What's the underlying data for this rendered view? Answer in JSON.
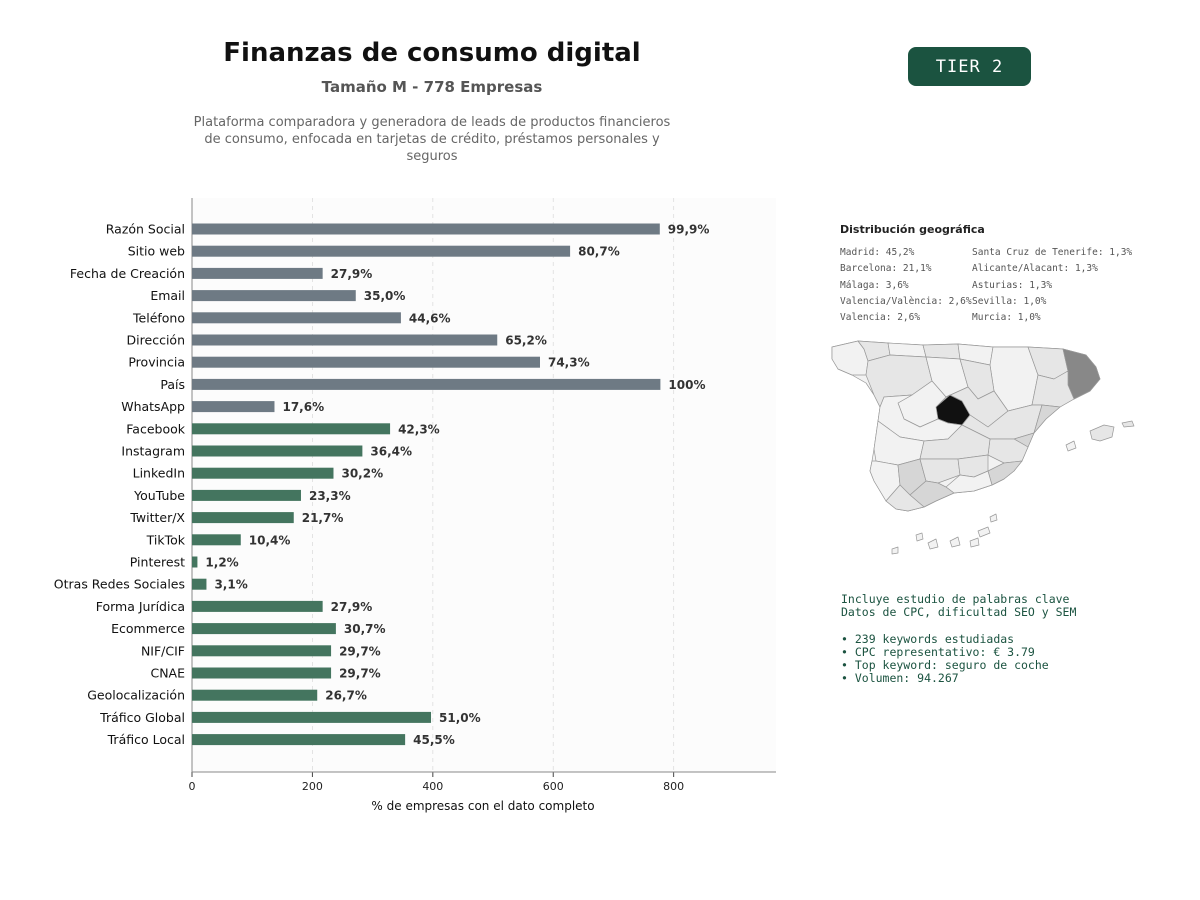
{
  "header": {
    "title": "Finanzas de consumo digital",
    "subtitle": "Tamaño M - 778 Empresas",
    "description": "Plataforma comparadora y generadora de leads de productos financieros de consumo, enfocada en tarjetas de crédito, préstamos personales y seguros",
    "tier": "TIER 2"
  },
  "chart_data": {
    "type": "bar",
    "orientation": "horizontal",
    "xlabel": "% de empresas con el dato completo",
    "xlim": [
      0,
      970
    ],
    "xticks": [
      0,
      200,
      400,
      600,
      800
    ],
    "grid": "vertical dashed",
    "total_companies": 778,
    "colors": {
      "company_data": "#6e7a84",
      "digital_data": "#44755f"
    },
    "categories": [
      "Razón Social",
      "Sitio web",
      "Fecha de Creación",
      "Email",
      "Teléfono",
      "Dirección",
      "Provincia",
      "País",
      "WhatsApp",
      "Facebook",
      "Instagram",
      "LinkedIn",
      "YouTube",
      "Twitter/X",
      "TikTok",
      "Pinterest",
      "Otras Redes Sociales",
      "Forma Jurídica",
      "Ecommerce",
      "NIF/CIF",
      "CNAE",
      "Geolocalización",
      "Tráfico Global",
      "Tráfico Local"
    ],
    "values": [
      777,
      628,
      217,
      272,
      347,
      507,
      578,
      778,
      137,
      329,
      283,
      235,
      181,
      169,
      81,
      9,
      24,
      217,
      239,
      231,
      231,
      208,
      397,
      354
    ],
    "labels": [
      "99,9%",
      "80,7%",
      "27,9%",
      "35,0%",
      "44,6%",
      "65,2%",
      "74,3%",
      "100%",
      "17,6%",
      "42,3%",
      "36,4%",
      "30,2%",
      "23,3%",
      "21,7%",
      "10,4%",
      "1,2%",
      "3,1%",
      "27,9%",
      "30,7%",
      "29,7%",
      "29,7%",
      "26,7%",
      "51,0%",
      "45,5%"
    ],
    "groups": [
      "company_data",
      "company_data",
      "company_data",
      "company_data",
      "company_data",
      "company_data",
      "company_data",
      "company_data",
      "company_data",
      "digital_data",
      "digital_data",
      "digital_data",
      "digital_data",
      "digital_data",
      "digital_data",
      "digital_data",
      "digital_data",
      "digital_data",
      "digital_data",
      "digital_data",
      "digital_data",
      "digital_data",
      "digital_data",
      "digital_data"
    ]
  },
  "geo": {
    "title": "Distribución geográfica",
    "col1": [
      "Madrid: 45,2%",
      "Barcelona: 21,1%",
      "Málaga: 3,6%",
      "Valencia/València: 2,6%",
      "Valencia: 2,6%"
    ],
    "col2": [
      "Santa Cruz de Tenerife: 1,3%",
      "Alicante/Alacant: 1,3%",
      "Asturias: 1,3%",
      "Sevilla: 1,0%",
      "Murcia: 1,0%"
    ],
    "map_colors": {
      "top": "#111111",
      "second": "#888888",
      "mid": "#d6d6d6",
      "low": "#e6e6e6",
      "lowest": "#f2f2f2",
      "border": "#999999"
    }
  },
  "keywords": {
    "line1": "Incluye estudio de palabras clave",
    "line2": "Datos de CPC, dificultad SEO y SEM",
    "bullets": [
      "• 239 keywords estudiadas",
      "• CPC representativo: € 3.79",
      "• Top keyword: seguro de coche",
      "• Volumen: 94.267"
    ]
  }
}
